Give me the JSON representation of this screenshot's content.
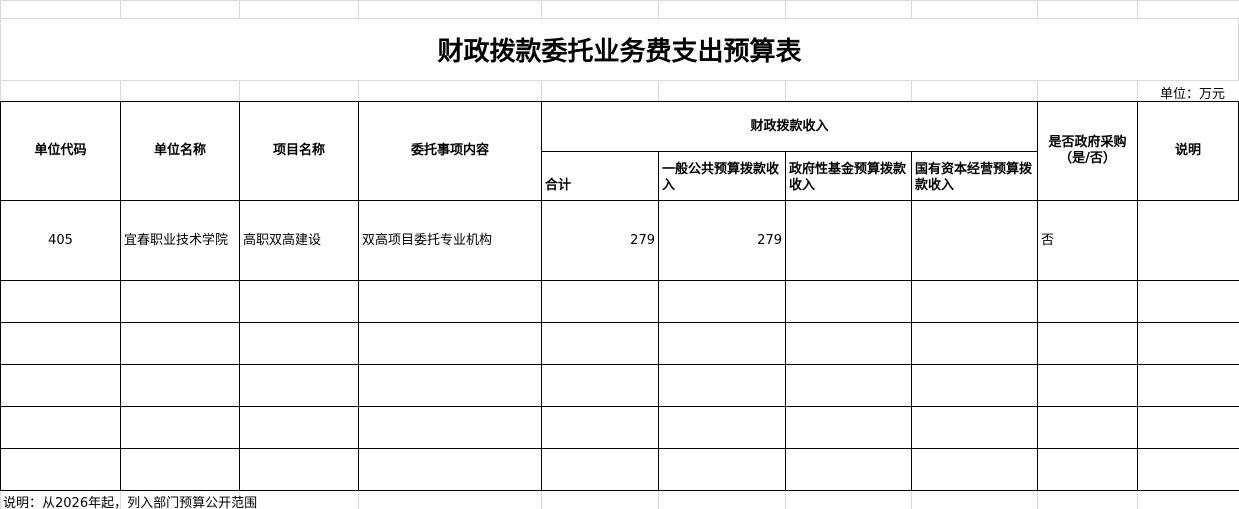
{
  "title": "财政拨款委托业务费支出预算表",
  "unit": "单位：万元",
  "headers": {
    "unit_code": "单位代码",
    "unit_name": "单位名称",
    "project_name": "项目名称",
    "entrust_content": "委托事项内容",
    "fiscal_income": "财政拨款收入",
    "total": "合计",
    "general_budget": "一般公共预算拨款收入",
    "gov_fund": "政府性基金预算拨款收入",
    "state_capital": "国有资本经营预算拨款收入",
    "gov_procurement": "是否政府采购（是/否）",
    "remark": "说明"
  },
  "rows": [
    {
      "unit_code": "405",
      "unit_name": "宜春职业技术学院",
      "project_name": "高职双高建设",
      "entrust_content": "双高项目委托专业机构",
      "total": "279",
      "general_budget": "279",
      "gov_fund": "",
      "state_capital": "",
      "gov_procurement": "否",
      "remark": ""
    }
  ],
  "note": "说明：从2026年起，列入部门预算公开范围"
}
